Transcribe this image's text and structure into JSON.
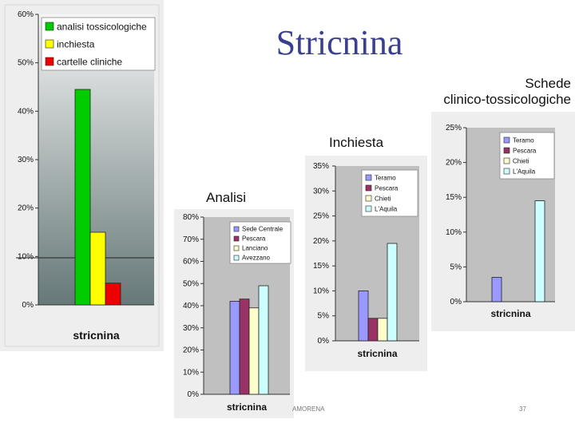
{
  "slide": {
    "title": "Stricnina",
    "heading_schede": "Schede\nclinico-tossicologiche",
    "heading_inchiesta": "Inchiesta",
    "heading_analisi": "Analisi",
    "footer_author": "AMORENA",
    "page_number": "37"
  },
  "chart_data": [
    {
      "id": "main",
      "type": "bar",
      "categories": [
        "stricnina"
      ],
      "series": [
        {
          "name": "analisi tossicologiche",
          "values": [
            44.5
          ],
          "color": "#00cc00"
        },
        {
          "name": "inchiesta",
          "values": [
            15
          ],
          "color": "#ffff00"
        },
        {
          "name": "cartelle cliniche",
          "values": [
            4.5
          ],
          "color": "#ee0000"
        }
      ],
      "ylim": [
        0,
        60
      ],
      "yticks": [
        "0%",
        "10%",
        "20%",
        "30%",
        "40%",
        "50%",
        "60%"
      ],
      "legend": "top-left",
      "background": "gradient-gray"
    },
    {
      "id": "analisi",
      "type": "bar",
      "categories": [
        "stricnina"
      ],
      "series": [
        {
          "name": "Sede Centrale",
          "values": [
            42
          ],
          "color": "#9999ff"
        },
        {
          "name": "Pescara",
          "values": [
            43
          ],
          "color": "#993366"
        },
        {
          "name": "Lanciano",
          "values": [
            39
          ],
          "color": "#ffffcc"
        },
        {
          "name": "Avezzano",
          "values": [
            49
          ],
          "color": "#ccffff"
        }
      ],
      "ylim": [
        0,
        80
      ],
      "yticks": [
        "0%",
        "10%",
        "20%",
        "30%",
        "40%",
        "50%",
        "60%",
        "70%",
        "80%"
      ],
      "legend": "top-right",
      "background": "#c0c0c0"
    },
    {
      "id": "inchiesta",
      "type": "bar",
      "categories": [
        "stricnina"
      ],
      "series": [
        {
          "name": "Teramo",
          "values": [
            10
          ],
          "color": "#9999ff"
        },
        {
          "name": "Pescara",
          "values": [
            4.5
          ],
          "color": "#993366"
        },
        {
          "name": "Chieti",
          "values": [
            4.5
          ],
          "color": "#ffffcc"
        },
        {
          "name": "L'Aquila",
          "values": [
            19.5
          ],
          "color": "#ccffff"
        }
      ],
      "ylim": [
        0,
        35
      ],
      "yticks": [
        "0%",
        "5%",
        "10%",
        "15%",
        "20%",
        "25%",
        "30%",
        "35%"
      ],
      "legend": "top-right",
      "background": "#c0c0c0"
    },
    {
      "id": "schede",
      "type": "bar",
      "categories": [
        "stricnina"
      ],
      "series": [
        {
          "name": "Teramo",
          "values": [
            3.5
          ],
          "color": "#9999ff"
        },
        {
          "name": "Pescara",
          "values": [
            0
          ],
          "color": "#993366"
        },
        {
          "name": "Chieti",
          "values": [
            0
          ],
          "color": "#ffffcc"
        },
        {
          "name": "L'Aquila",
          "values": [
            14.5
          ],
          "color": "#ccffff"
        }
      ],
      "ylim": [
        0,
        25
      ],
      "yticks": [
        "0%",
        "5%",
        "10%",
        "15%",
        "20%",
        "25%"
      ],
      "legend": "top-right",
      "background": "#c0c0c0"
    }
  ]
}
